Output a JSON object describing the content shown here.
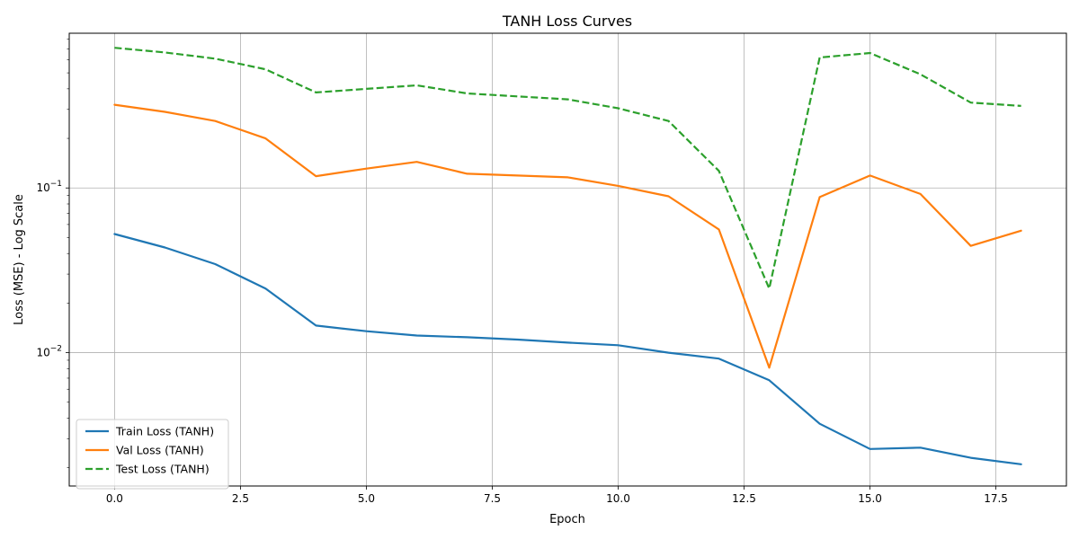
{
  "chart_data": {
    "type": "line",
    "title": "TANH Loss Curves",
    "xlabel": "Epoch",
    "ylabel": "Loss (MSE) - Log Scale",
    "yscale": "log",
    "xlim": [
      -0.9,
      18.9
    ],
    "ylim": [
      0.00155,
      0.87
    ],
    "grid": true,
    "legend_position": "lower-left",
    "x_ticks": [
      0.0,
      2.5,
      5.0,
      7.5,
      10.0,
      12.5,
      15.0,
      17.5
    ],
    "x_tick_labels": [
      "0.0",
      "2.5",
      "5.0",
      "7.5",
      "10.0",
      "12.5",
      "15.0",
      "17.5"
    ],
    "y_ticks": [
      0.01,
      0.1
    ],
    "y_tick_base": "10",
    "y_tick_exponents": [
      "−2",
      "−1"
    ],
    "x": [
      0,
      1,
      2,
      3,
      4,
      5,
      6,
      7,
      8,
      9,
      10,
      11,
      12,
      13,
      14,
      15,
      16,
      17,
      18
    ],
    "series": [
      {
        "name": "Train Loss (TANH)",
        "color": "#1f77b4",
        "style": "solid",
        "values": [
          0.0525,
          0.0435,
          0.0345,
          0.0245,
          0.0146,
          0.0135,
          0.0127,
          0.0124,
          0.012,
          0.0115,
          0.0111,
          0.01,
          0.0092,
          0.0068,
          0.0037,
          0.0026,
          0.00265,
          0.0023,
          0.0021
        ]
      },
      {
        "name": "Val Loss (TANH)",
        "color": "#ff7f0e",
        "style": "solid",
        "values": [
          0.32,
          0.29,
          0.255,
          0.2,
          0.118,
          0.131,
          0.144,
          0.122,
          0.119,
          0.116,
          0.103,
          0.089,
          0.056,
          0.0081,
          0.088,
          0.119,
          0.092,
          0.0445,
          0.055
        ]
      },
      {
        "name": "Test Loss (TANH)",
        "color": "#2ca02c",
        "style": "dashed",
        "values": [
          0.71,
          0.665,
          0.61,
          0.525,
          0.38,
          0.4,
          0.42,
          0.375,
          0.36,
          0.345,
          0.305,
          0.255,
          0.127,
          0.0245,
          0.62,
          0.66,
          0.49,
          0.33,
          0.315
        ]
      }
    ]
  }
}
